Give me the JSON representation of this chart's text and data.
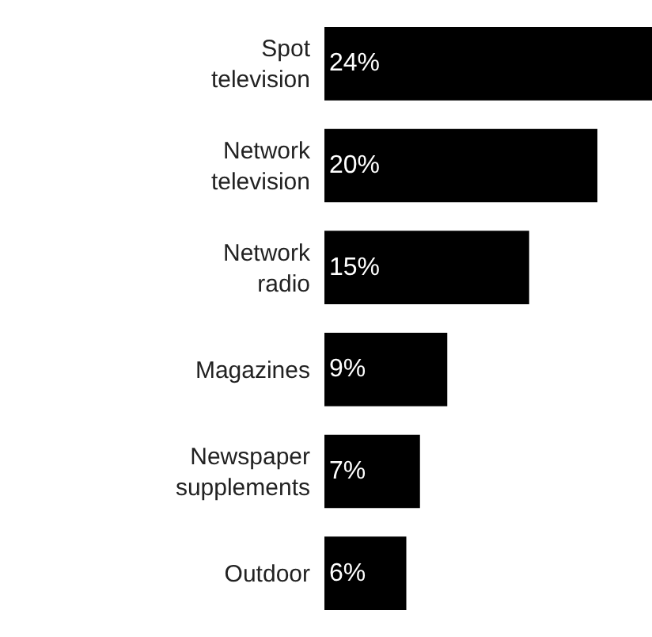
{
  "chart_data": {
    "type": "bar",
    "orientation": "horizontal",
    "categories": [
      "Spot television",
      "Network television",
      "Network radio",
      "Magazines",
      "Newspaper supplements",
      "Outdoor"
    ],
    "values": [
      24,
      20,
      15,
      9,
      7,
      6
    ],
    "value_labels": [
      "24%",
      "20%",
      "15%",
      "9%",
      "7%",
      "6%"
    ],
    "color": "#000000"
  }
}
